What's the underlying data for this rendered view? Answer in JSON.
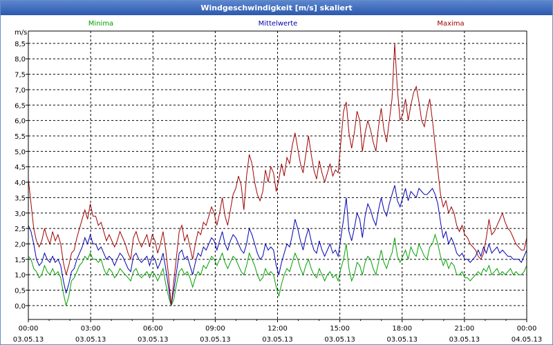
{
  "chart_data": {
    "type": "line",
    "title": "Windgeschwindigkeit [m/s] skaliert",
    "ylabel": "m/s",
    "ylim": [
      -0.45,
      8.9
    ],
    "yticks": [
      "0,0",
      "0,5",
      "1,0",
      "1,5",
      "2,0",
      "2,5",
      "3,0",
      "3,5",
      "4,0",
      "4,5",
      "5,0",
      "5,5",
      "6,0",
      "6,5",
      "7,0",
      "7,5",
      "8,0",
      "8,5"
    ],
    "xlim": [
      0,
      24
    ],
    "xticks": [
      {
        "time": "00:00",
        "date": "03.05.13"
      },
      {
        "time": "03:00",
        "date": "03.05.13"
      },
      {
        "time": "06:00",
        "date": "03.05.13"
      },
      {
        "time": "09:00",
        "date": "03.05.13"
      },
      {
        "time": "12:00",
        "date": "03.05.13"
      },
      {
        "time": "15:00",
        "date": "03.05.13"
      },
      {
        "time": "18:00",
        "date": "03.05.13"
      },
      {
        "time": "21:00",
        "date": "03.05.13"
      },
      {
        "time": "00:00",
        "date": "04.05.13"
      }
    ],
    "grid": true,
    "x_step_hours": 0.1667,
    "series": [
      {
        "name": "Minima",
        "color": "#00a000",
        "values": [
          1.6,
          1.5,
          1.2,
          1.1,
          0.9,
          1.0,
          1.3,
          1.1,
          1.0,
          1.2,
          1.0,
          1.1,
          0.9,
          0.4,
          0.0,
          0.3,
          0.8,
          0.9,
          1.1,
          1.3,
          1.4,
          1.6,
          1.5,
          1.7,
          1.5,
          1.5,
          1.4,
          1.5,
          1.2,
          1.0,
          1.2,
          1.1,
          0.9,
          1.0,
          1.2,
          1.1,
          1.0,
          0.9,
          0.8,
          1.1,
          1.2,
          1.0,
          0.9,
          1.0,
          1.1,
          0.9,
          1.1,
          1.0,
          0.8,
          1.0,
          1.2,
          0.7,
          0.3,
          0.0,
          0.2,
          0.7,
          1.1,
          1.2,
          1.0,
          1.1,
          0.9,
          0.6,
          0.9,
          1.1,
          1.0,
          1.3,
          1.2,
          1.4,
          1.6,
          1.5,
          1.3,
          1.5,
          1.7,
          1.4,
          1.2,
          1.4,
          1.6,
          1.5,
          1.3,
          1.1,
          1.0,
          1.3,
          1.7,
          1.5,
          1.3,
          1.0,
          0.8,
          0.9,
          1.2,
          1.0,
          1.1,
          1.0,
          0.6,
          0.3,
          0.7,
          1.0,
          1.2,
          1.1,
          1.4,
          1.7,
          1.5,
          1.2,
          1.0,
          1.3,
          1.5,
          1.2,
          1.0,
          0.9,
          1.2,
          1.0,
          0.8,
          1.0,
          1.1,
          0.9,
          1.0,
          0.8,
          1.2,
          1.5,
          2.0,
          1.2,
          0.8,
          1.0,
          1.4,
          1.3,
          1.0,
          1.4,
          1.6,
          1.5,
          1.2,
          1.0,
          1.4,
          1.8,
          1.4,
          1.2,
          1.5,
          1.7,
          2.2,
          1.6,
          1.4,
          1.6,
          1.8,
          1.5,
          1.9,
          1.7,
          1.6,
          2.0,
          1.8,
          1.6,
          1.5,
          1.9,
          2.0,
          2.3,
          2.0,
          1.6,
          1.3,
          1.5,
          1.2,
          1.4,
          1.3,
          1.0,
          1.0,
          1.1,
          0.9,
          0.9,
          0.8,
          0.9,
          1.0,
          1.1,
          1.0,
          1.2,
          1.1,
          1.3,
          1.0,
          1.1,
          1.2,
          1.0,
          1.1,
          1.0,
          1.1,
          1.2,
          1.0,
          1.1,
          1.0,
          1.0,
          1.1,
          1.3
        ]
      },
      {
        "name": "Mittelwerte",
        "color": "#0000b0",
        "values": [
          2.6,
          2.4,
          2.0,
          1.5,
          1.3,
          1.4,
          1.7,
          1.5,
          1.4,
          1.6,
          1.4,
          1.5,
          1.3,
          0.8,
          0.4,
          0.7,
          1.1,
          1.2,
          1.5,
          1.7,
          1.9,
          2.2,
          2.0,
          2.3,
          2.0,
          2.0,
          1.8,
          1.9,
          1.7,
          1.5,
          1.6,
          1.5,
          1.3,
          1.5,
          1.7,
          1.6,
          1.4,
          1.2,
          1.1,
          1.6,
          1.7,
          1.5,
          1.4,
          1.5,
          1.6,
          1.3,
          1.6,
          1.5,
          1.2,
          1.4,
          1.7,
          1.2,
          0.6,
          0.0,
          0.5,
          1.1,
          1.7,
          1.8,
          1.5,
          1.6,
          1.3,
          1.0,
          1.4,
          1.7,
          1.6,
          1.9,
          1.8,
          2.0,
          2.2,
          2.1,
          1.8,
          2.1,
          2.4,
          2.0,
          1.8,
          2.1,
          2.3,
          2.2,
          2.0,
          1.8,
          1.7,
          2.0,
          2.5,
          2.3,
          2.0,
          1.7,
          1.5,
          1.6,
          2.0,
          1.8,
          1.9,
          1.8,
          1.3,
          1.0,
          1.4,
          1.7,
          2.0,
          1.9,
          2.3,
          2.8,
          2.5,
          2.1,
          1.8,
          2.2,
          2.5,
          2.1,
          1.8,
          1.7,
          2.1,
          1.8,
          1.6,
          1.8,
          2.0,
          1.7,
          1.8,
          1.6,
          2.2,
          2.8,
          3.5,
          2.4,
          2.1,
          2.5,
          3.0,
          2.8,
          2.2,
          2.9,
          3.3,
          3.1,
          2.8,
          2.6,
          3.1,
          3.5,
          3.1,
          2.9,
          3.3,
          3.6,
          3.9,
          3.4,
          3.2,
          3.5,
          3.8,
          3.4,
          3.7,
          3.6,
          3.5,
          3.8,
          3.7,
          3.6,
          3.6,
          3.7,
          3.8,
          3.6,
          3.3,
          2.7,
          2.2,
          2.4,
          2.0,
          2.2,
          2.0,
          1.7,
          1.6,
          1.7,
          1.5,
          1.5,
          1.4,
          1.5,
          1.6,
          1.8,
          1.6,
          1.9,
          1.7,
          2.0,
          1.7,
          1.8,
          1.9,
          1.7,
          1.8,
          1.7,
          1.6,
          1.6,
          1.5,
          1.5,
          1.5,
          1.4,
          1.6,
          1.8
        ]
      },
      {
        "name": "Maxima",
        "color": "#a00000",
        "values": [
          4.1,
          3.3,
          2.5,
          2.1,
          1.9,
          2.1,
          2.5,
          2.2,
          2.0,
          2.4,
          2.1,
          2.3,
          2.0,
          1.4,
          1.0,
          1.3,
          1.7,
          1.8,
          2.2,
          2.5,
          2.8,
          3.1,
          2.8,
          3.3,
          2.9,
          2.9,
          2.6,
          2.7,
          2.4,
          2.1,
          2.3,
          2.1,
          1.9,
          2.1,
          2.4,
          2.2,
          2.0,
          1.7,
          1.5,
          2.2,
          2.4,
          2.1,
          1.9,
          2.1,
          2.3,
          1.9,
          2.3,
          2.1,
          1.7,
          2.0,
          2.4,
          1.8,
          1.0,
          0.0,
          0.8,
          1.6,
          2.4,
          2.6,
          2.1,
          2.3,
          1.9,
          1.5,
          2.0,
          2.4,
          2.3,
          2.7,
          2.6,
          2.9,
          3.2,
          3.0,
          2.6,
          3.0,
          3.5,
          2.9,
          2.6,
          3.1,
          3.6,
          3.8,
          4.2,
          3.9,
          3.1,
          4.2,
          4.9,
          4.6,
          4.0,
          3.6,
          3.4,
          3.7,
          4.4,
          4.0,
          4.5,
          4.3,
          3.7,
          4.1,
          4.6,
          4.2,
          4.8,
          4.6,
          5.2,
          5.6,
          5.1,
          4.6,
          4.3,
          4.9,
          5.5,
          4.9,
          4.4,
          4.1,
          4.7,
          4.3,
          4.0,
          4.3,
          4.6,
          4.2,
          4.4,
          4.3,
          5.3,
          6.3,
          6.6,
          5.6,
          5.1,
          5.6,
          6.3,
          6.0,
          5.0,
          5.6,
          6.0,
          5.7,
          5.3,
          5.0,
          5.8,
          6.4,
          5.7,
          5.3,
          6.0,
          6.7,
          8.5,
          7.0,
          6.0,
          6.2,
          6.7,
          6.0,
          6.5,
          6.9,
          7.1,
          6.6,
          6.0,
          5.8,
          6.3,
          6.7,
          6.0,
          5.2,
          4.4,
          3.6,
          3.2,
          3.4,
          3.0,
          3.2,
          3.0,
          2.6,
          2.4,
          2.6,
          2.3,
          2.2,
          2.0,
          1.9,
          1.8,
          1.6,
          1.5,
          1.7,
          2.2,
          2.8,
          2.3,
          2.4,
          2.6,
          2.8,
          3.0,
          2.7,
          2.5,
          2.4,
          2.2,
          2.0,
          1.9,
          1.8,
          1.8,
          2.2
        ]
      }
    ]
  }
}
